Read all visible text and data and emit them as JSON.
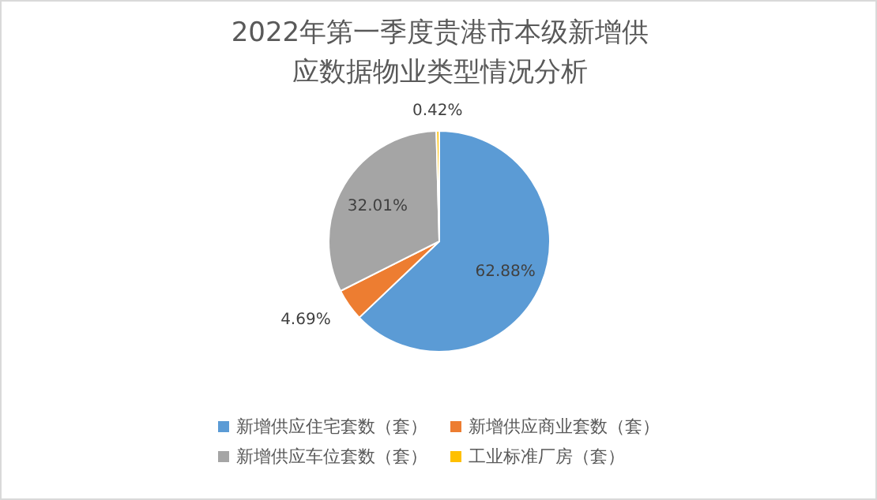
{
  "chart_data": {
    "type": "pie",
    "title": "2022年第一季度贵港市本级新增供应数据物业类型情况分析",
    "categories": [
      "新增供应住宅套数（套）",
      "新增供应商业套数（套）",
      "新增供应车位套数（套）",
      "工业标准厂房（套）"
    ],
    "values": [
      62.88,
      4.69,
      32.01,
      0.42
    ],
    "colors": [
      "#5b9bd5",
      "#ed7d31",
      "#a5a5a5",
      "#ffc000"
    ],
    "value_labels": [
      "62.88%",
      "4.69%",
      "32.01%",
      "0.42%"
    ],
    "legend": "bottom"
  }
}
